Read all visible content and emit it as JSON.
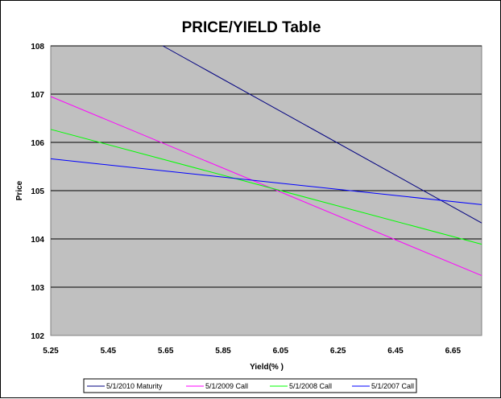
{
  "chart_data": {
    "type": "line",
    "title": "PRICE/YIELD Table",
    "xlabel": "Yield(% )",
    "ylabel": "Price",
    "xlim": [
      5.25,
      6.75
    ],
    "ylim": [
      102,
      108
    ],
    "x_ticks": [
      "5.25",
      "5.45",
      "5.65",
      "5.85",
      "6.05",
      "6.25",
      "6.45",
      "6.65"
    ],
    "y_ticks": [
      "102",
      "103",
      "104",
      "105",
      "106",
      "107",
      "108"
    ],
    "grid": "horizontal",
    "plot_background": "#C0C0C0",
    "legend_position": "bottom",
    "series": [
      {
        "name": "5/1/2010 Maturity",
        "color": "#000080",
        "x": [
          5.64,
          6.75
        ],
        "y": [
          108.0,
          104.33
        ]
      },
      {
        "name": "5/1/2009 Call",
        "color": "#FF00FF",
        "x": [
          5.25,
          6.75
        ],
        "y": [
          106.95,
          103.24
        ]
      },
      {
        "name": "5/1/2008 Call",
        "color": "#00FF00",
        "x": [
          5.25,
          6.75
        ],
        "y": [
          106.27,
          103.89
        ]
      },
      {
        "name": "5/1/2007 Call",
        "color": "#0000FF",
        "x": [
          5.25,
          6.75
        ],
        "y": [
          105.66,
          104.71
        ]
      }
    ]
  }
}
